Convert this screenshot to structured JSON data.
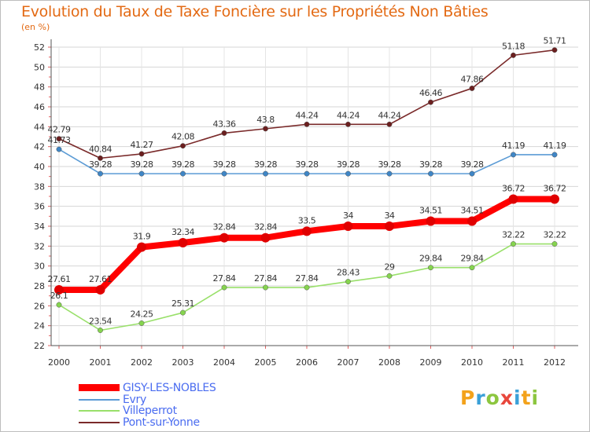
{
  "chart_data": {
    "type": "line",
    "title": "Evolution du Taux de Taxe Foncière sur les Propriétés Non Bâties",
    "ylabel": "(en %)",
    "xlabel": "",
    "x": [
      "2000",
      "2001",
      "2002",
      "2003",
      "2004",
      "2005",
      "2006",
      "2007",
      "2008",
      "2009",
      "2010",
      "2011",
      "2012"
    ],
    "ylim": [
      22,
      52
    ],
    "yticks": [
      22,
      24,
      26,
      28,
      30,
      32,
      34,
      36,
      38,
      40,
      42,
      44,
      46,
      48,
      50,
      52
    ],
    "grid": true,
    "legend_position": "bottom-left",
    "series": [
      {
        "name": "GISY-LES-NOBLES",
        "color": "#ff0000",
        "values": [
          27.61,
          27.61,
          31.9,
          32.34,
          32.84,
          32.84,
          33.5,
          34,
          34,
          34.51,
          34.51,
          36.72,
          36.72
        ],
        "labels": [
          "27.61",
          "27.61",
          "31.9",
          "32.34",
          "32.84",
          "32.84",
          "33.5",
          "34",
          "34",
          "34.51",
          "34.51",
          "36.72",
          "36.72"
        ]
      },
      {
        "name": "Evry",
        "color": "#5b9bd5",
        "values": [
          41.73,
          39.28,
          39.28,
          39.28,
          39.28,
          39.28,
          39.28,
          39.28,
          39.28,
          39.28,
          39.28,
          41.19,
          41.19
        ],
        "labels": [
          "41.73",
          "39.28",
          "39.28",
          "39.28",
          "39.28",
          "39.28",
          "39.28",
          "39.28",
          "39.28",
          "39.28",
          "39.28",
          "41.19",
          "41.19"
        ]
      },
      {
        "name": "Villeperrot",
        "color": "#99e06a",
        "values": [
          26.1,
          23.54,
          24.25,
          25.31,
          27.84,
          27.84,
          27.84,
          28.43,
          29,
          29.84,
          29.84,
          32.22,
          32.22
        ],
        "labels": [
          "26.1",
          "23.54",
          "24.25",
          "25.31",
          "27.84",
          "27.84",
          "27.84",
          "28.43",
          "29",
          "29.84",
          "29.84",
          "32.22",
          "32.22"
        ]
      },
      {
        "name": "Pont-sur-Yonne",
        "color": "#7a2a2a",
        "values": [
          42.79,
          40.84,
          41.27,
          42.08,
          43.36,
          43.8,
          44.24,
          44.24,
          44.24,
          46.46,
          47.86,
          51.18,
          51.71
        ],
        "labels": [
          "42.79",
          "40.84",
          "41.27",
          "42.08",
          "43.36",
          "43.8",
          "44.24",
          "44.24",
          "44.24",
          "46.46",
          "47.86",
          "51.18",
          "51.71"
        ]
      }
    ]
  },
  "logo": {
    "letters": [
      "P",
      "r",
      "o",
      "x",
      "i",
      "t",
      "i"
    ],
    "colors": [
      "#f3a21b",
      "#3aa0d8",
      "#8cc63f",
      "#e8473c",
      "#3aa0d8",
      "#f3a21b",
      "#8cc63f"
    ]
  }
}
